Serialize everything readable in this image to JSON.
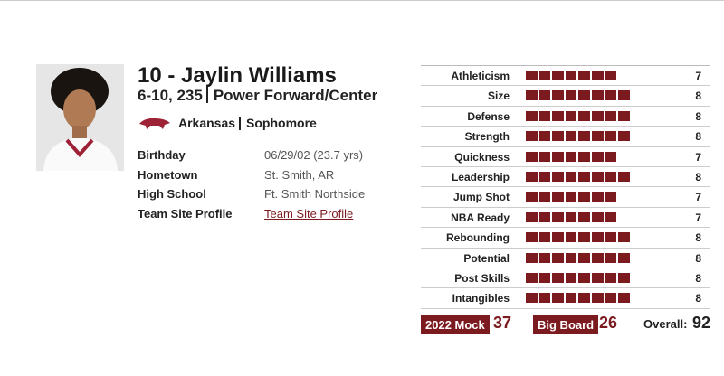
{
  "player": {
    "number_name": "10 - Jaylin Williams",
    "size": "6-10, 235",
    "position": "Power Forward/Center",
    "school": "Arkansas",
    "class": "Sophomore"
  },
  "info": [
    {
      "label": "Birthday",
      "value": "06/29/02 (23.7 yrs)"
    },
    {
      "label": "Hometown",
      "value": "St. Smith, AR"
    },
    {
      "label": "High School",
      "value": "Ft. Smith Northside"
    },
    {
      "label": "Team Site Profile",
      "value": "Team Site Profile"
    }
  ],
  "ratings": [
    {
      "label": "Athleticism",
      "value": 7
    },
    {
      "label": "Size",
      "value": 8
    },
    {
      "label": "Defense",
      "value": 8
    },
    {
      "label": "Strength",
      "value": 8
    },
    {
      "label": "Quickness",
      "value": 7
    },
    {
      "label": "Leadership",
      "value": 8
    },
    {
      "label": "Jump Shot",
      "value": 7
    },
    {
      "label": "NBA Ready",
      "value": 7
    },
    {
      "label": "Rebounding",
      "value": 8
    },
    {
      "label": "Potential",
      "value": 8
    },
    {
      "label": "Post Skills",
      "value": 8
    },
    {
      "label": "Intangibles",
      "value": 8
    }
  ],
  "mock": {
    "label": "2022 Mock",
    "value": 37
  },
  "big_board": {
    "label": "Big Board",
    "value": 26
  },
  "overall": {
    "label": "Overall:",
    "value": 92
  }
}
